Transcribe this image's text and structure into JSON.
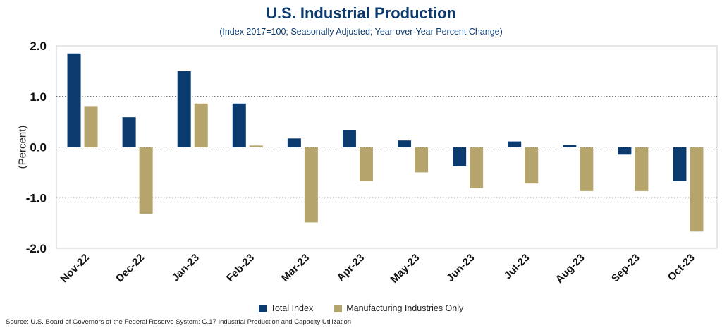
{
  "chart_data": {
    "type": "bar",
    "title": "U.S. Industrial Production",
    "subtitle": "(Index 2017=100; Seasonally Adjusted; Year-over-Year Percent Change)",
    "xlabel": "",
    "ylabel": "(Percent)",
    "ylim": [
      -2.0,
      2.0
    ],
    "yticks": [
      "2.0",
      "1.0",
      "0.0",
      "-1.0",
      "-2.0"
    ],
    "ytick_values": [
      2,
      1,
      0,
      -1,
      -2
    ],
    "grid": "dotted horizontal",
    "legend_placement": "bottom",
    "categories": [
      "Nov-22",
      "Dec-22",
      "Jan-23",
      "Feb-23",
      "Mar-23",
      "Apr-23",
      "May-23",
      "Jun-23",
      "Jul-23",
      "Aug-23",
      "Sep-23",
      "Oct-23"
    ],
    "series": [
      {
        "name": "Total Index",
        "color": "#0b3a6e",
        "values": [
          1.85,
          0.59,
          1.5,
          0.86,
          0.17,
          0.34,
          0.13,
          -0.38,
          0.11,
          0.04,
          -0.15,
          -0.67
        ]
      },
      {
        "name": "Manufacturing Industries Only",
        "color": "#b5a46c",
        "values": [
          0.81,
          -1.32,
          0.86,
          0.03,
          -1.49,
          -0.67,
          -0.5,
          -0.81,
          -0.72,
          -0.87,
          -0.87,
          -1.67
        ]
      }
    ],
    "source": "Source: U.S. Board of Governors of the Federal Reserve System: G.17 Industrial Production and Capacity Utilization"
  }
}
